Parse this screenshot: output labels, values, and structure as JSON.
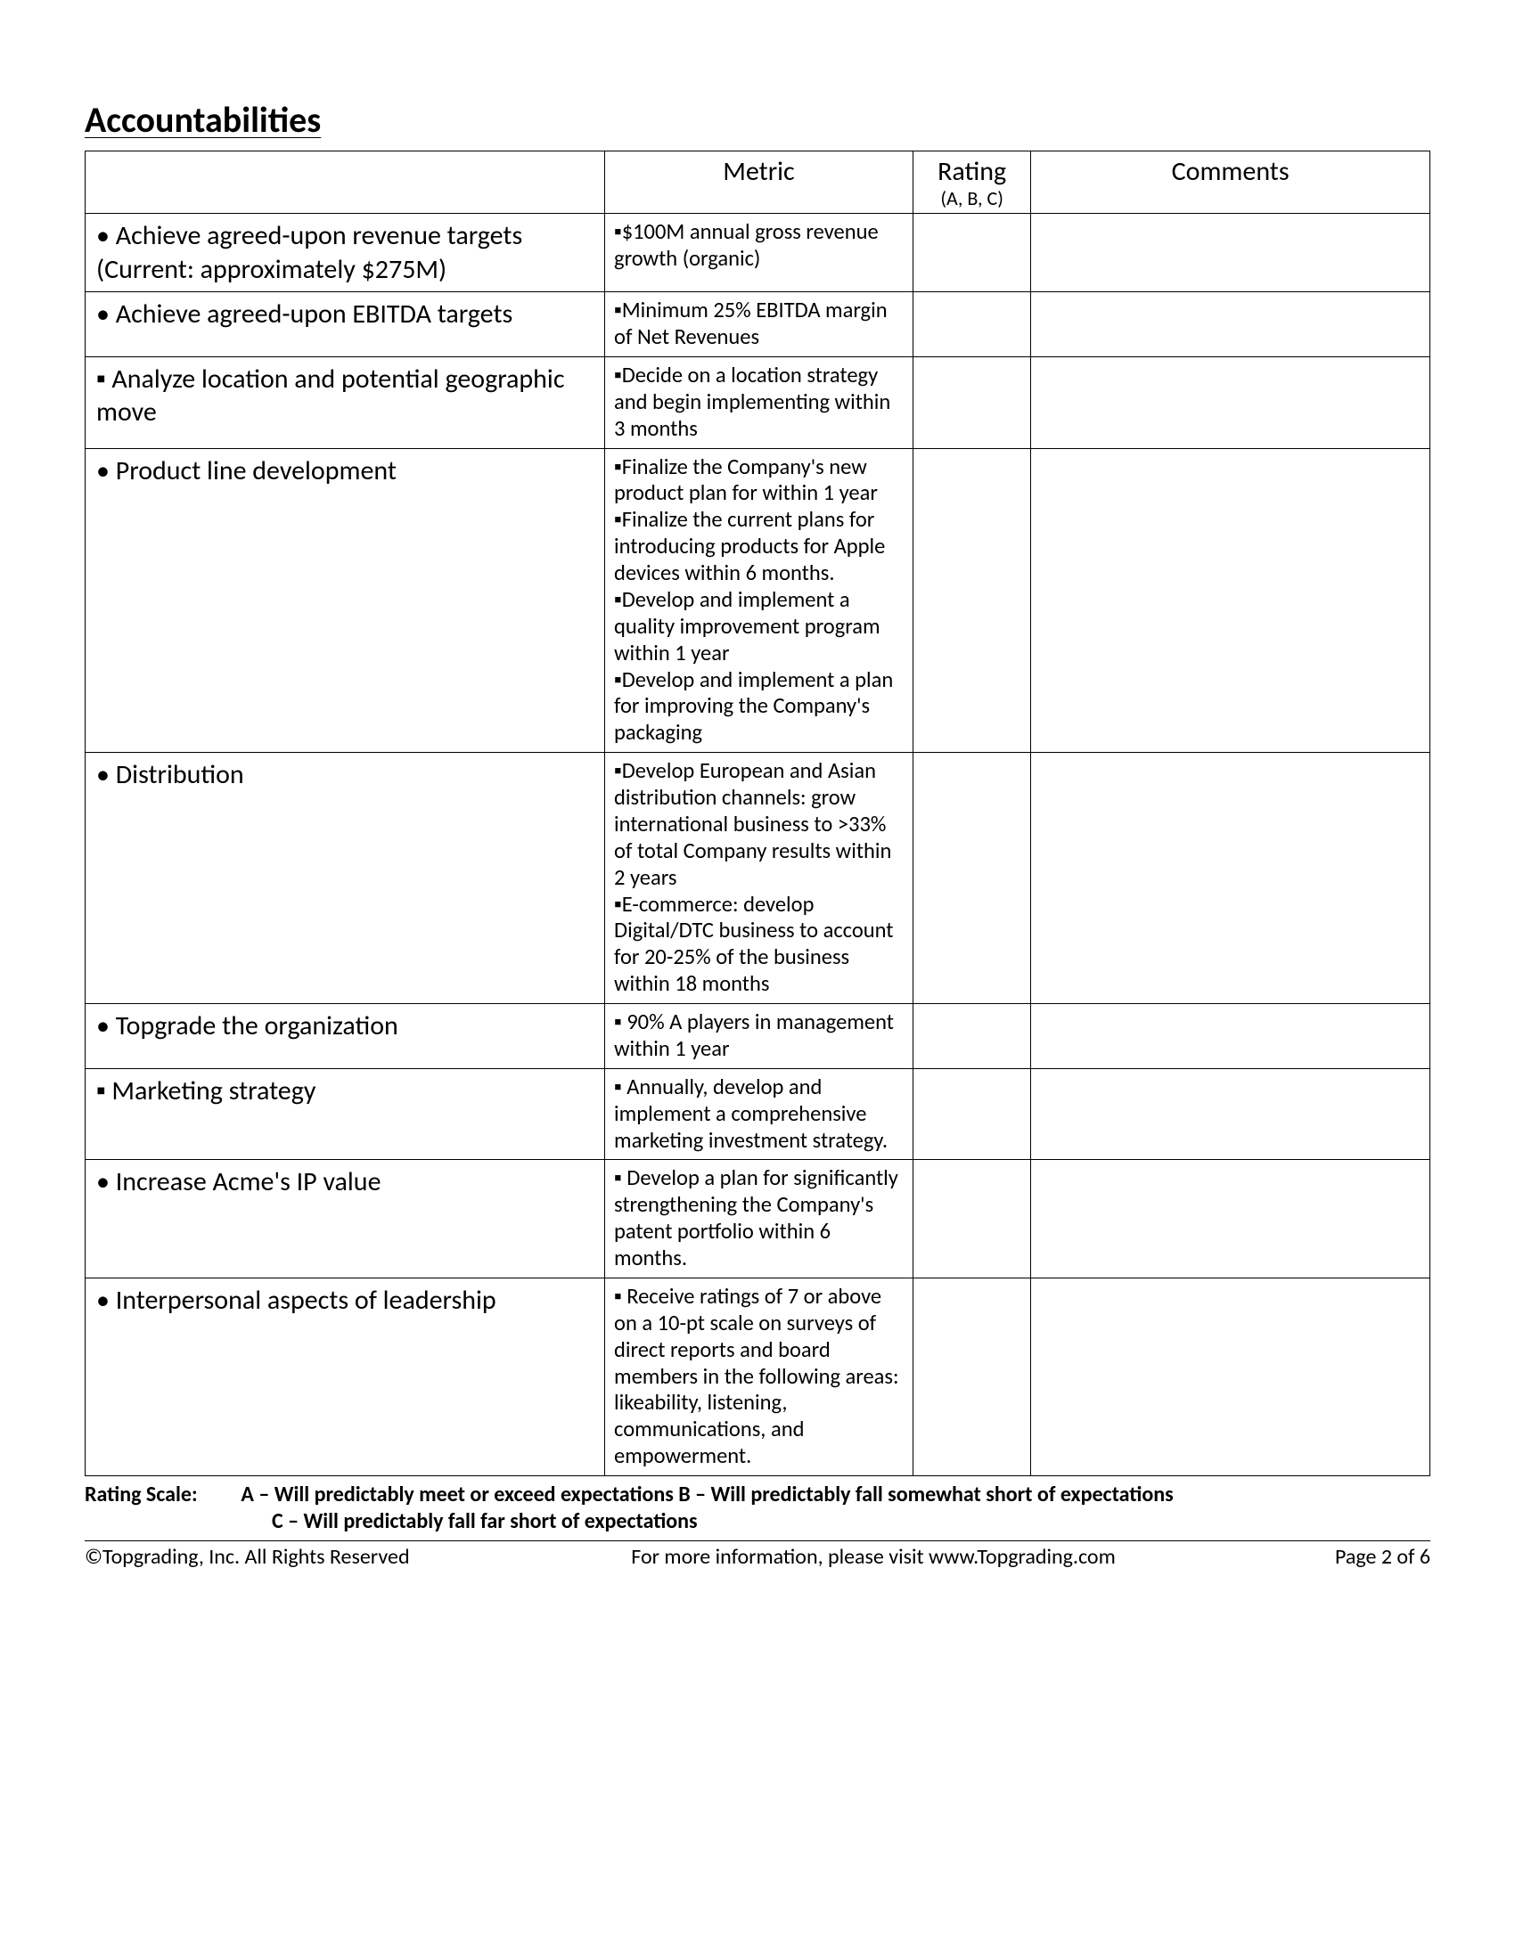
{
  "title": "Accountabilities",
  "columns": {
    "blank": "",
    "metric": "Metric",
    "rating": "Rating",
    "rating_sub": "(A, B, C)",
    "comments": "Comments"
  },
  "rows": [
    {
      "item_bullet": "•",
      "item": "Achieve agreed-upon revenue targets (Current: approximately $275M)",
      "metrics": [
        {
          "b": "▪",
          "t": "$100M annual gross revenue growth (organic)"
        }
      ]
    },
    {
      "item_bullet": "•",
      "item": "Achieve agreed-upon EBITDA targets",
      "metrics": [
        {
          "b": "▪",
          "t": "Minimum 25% EBITDA margin of Net Revenues"
        }
      ]
    },
    {
      "item_bullet": "▪",
      "item": "Analyze location and potential geographic move",
      "metrics": [
        {
          "b": "▪",
          "t": "Decide on a location strategy and begin implementing within 3 months"
        }
      ]
    },
    {
      "item_bullet": "•",
      "item": "Product line development",
      "metrics": [
        {
          "b": "▪",
          "t": "Finalize the Company's new product plan for within 1 year"
        },
        {
          "b": "▪",
          "t": "Finalize the current plans for introducing products for Apple devices within 6 months."
        },
        {
          "b": "▪",
          "t": "Develop and implement a quality improvement program within 1 year"
        },
        {
          "b": "▪",
          "t": "Develop and implement a plan for improving the Company's packaging"
        }
      ]
    },
    {
      "item_bullet": "•",
      "item": "Distribution",
      "metrics": [
        {
          "b": "▪",
          "t": "Develop European and Asian distribution channels: grow international business to >33% of total Company results within 2 years"
        },
        {
          "b": "▪",
          "t": "E-commerce: develop Digital/DTC business to account for 20-25% of the business within 18 months"
        }
      ]
    },
    {
      "item_bullet": "•",
      "item": "Topgrade the organization",
      "metrics": [
        {
          "b": "▪",
          "t": " 90% A players in management within 1 year"
        }
      ]
    },
    {
      "item_bullet": "▪",
      "item": "Marketing strategy",
      "metrics": [
        {
          "b": "▪",
          "t": " Annually, develop and implement a comprehensive marketing investment strategy."
        }
      ]
    },
    {
      "item_bullet": "•",
      "item": "Increase Acme's IP value",
      "metrics": [
        {
          "b": "▪",
          "t": " Develop a plan for significantly strengthening the Company's patent portfolio within 6 months."
        }
      ]
    },
    {
      "item_bullet": "•",
      "item": "Interpersonal aspects of leadership",
      "metrics": [
        {
          "b": "▪",
          "t": " Receive ratings of 7 or above on a 10-pt scale on surveys of direct reports and board members in the following areas: likeability, listening, communications, and empowerment."
        }
      ]
    }
  ],
  "rating_scale": {
    "label": "Rating Scale:",
    "line1": "A – Will predictably meet or exceed expectations  B – Will predictably fall somewhat short of expectations",
    "line2": "C – Will predictably fall far short of expectations"
  },
  "footer": {
    "left": "©Topgrading, Inc. All Rights Reserved",
    "mid": "For more information, please visit www.Topgrading.com",
    "right": "Page 2 of 6"
  },
  "colors": {
    "border": "#000000",
    "text": "#000000",
    "background": "#ffffff"
  }
}
